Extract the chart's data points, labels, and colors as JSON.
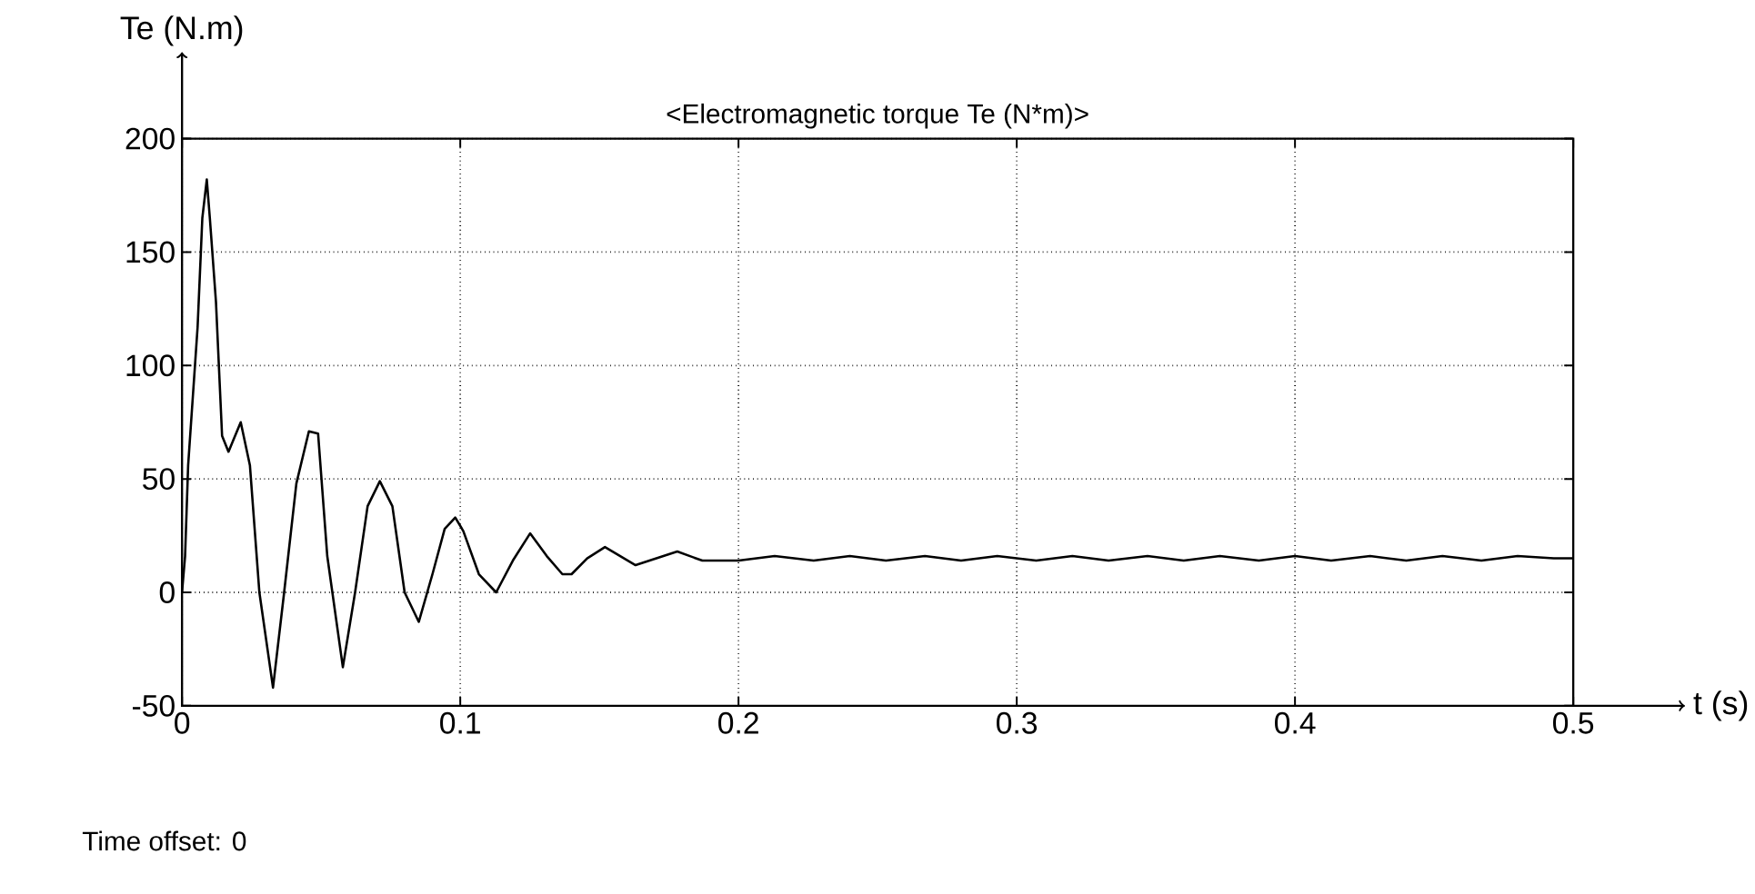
{
  "chart_data": {
    "type": "line",
    "title": "<Electromagnetic torque Te (N*m)>",
    "xlabel": "t (s)",
    "ylabel": "Te (N.m)",
    "annotations": [
      "Time offset:  0"
    ],
    "xlim": [
      0,
      0.5
    ],
    "ylim": [
      -50,
      200
    ],
    "xticks": [
      0,
      0.1,
      0.2,
      0.3,
      0.4,
      0.5
    ],
    "yticks": [
      -50,
      0,
      50,
      100,
      150,
      200
    ],
    "grid": true,
    "line_style": "solid",
    "marker": "none",
    "series": [
      {
        "color": "#000000",
        "x": [
          0,
          0.0011,
          0.0022,
          0.0056,
          0.0073,
          0.0089,
          0.01,
          0.0122,
          0.0144,
          0.0167,
          0.0211,
          0.0244,
          0.0278,
          0.0327,
          0.0367,
          0.0411,
          0.0456,
          0.0489,
          0.0522,
          0.0578,
          0.0622,
          0.0667,
          0.0711,
          0.0756,
          0.08,
          0.0851,
          0.09,
          0.0944,
          0.0982,
          0.1011,
          0.1067,
          0.1129,
          0.1189,
          0.1251,
          0.1311,
          0.1367,
          0.14,
          0.1456,
          0.152,
          0.163,
          0.178,
          0.187,
          0.2,
          0.213,
          0.227,
          0.24,
          0.253,
          0.267,
          0.28,
          0.293,
          0.307,
          0.32,
          0.333,
          0.347,
          0.36,
          0.373,
          0.387,
          0.4,
          0.413,
          0.427,
          0.44,
          0.453,
          0.467,
          0.48,
          0.493,
          0.5
        ],
        "values": [
          0,
          16,
          56,
          117,
          165,
          182,
          165,
          128,
          69,
          62,
          75,
          56,
          0,
          -42,
          0,
          48,
          71,
          70,
          16,
          -33,
          0,
          38,
          49,
          38,
          0,
          -13,
          8,
          28,
          33,
          27,
          8,
          0,
          14,
          26,
          16,
          8,
          8,
          15,
          20,
          12,
          18,
          14,
          14,
          16,
          14,
          16,
          14,
          16,
          14,
          16,
          14,
          16,
          14,
          16,
          14,
          16,
          14,
          16,
          14,
          16,
          14,
          16,
          14,
          16,
          15,
          15
        ]
      }
    ]
  }
}
